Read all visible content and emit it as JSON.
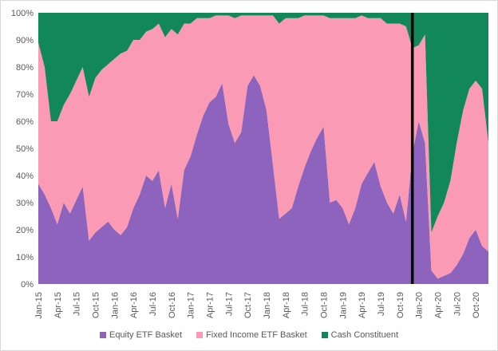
{
  "chart_data": {
    "type": "area",
    "stacked": true,
    "percent": true,
    "title": "",
    "xlabel": "",
    "ylabel": "",
    "ylim": [
      0,
      100
    ],
    "y_ticks": [
      "0%",
      "10%",
      "20%",
      "30%",
      "40%",
      "50%",
      "60%",
      "70%",
      "80%",
      "90%",
      "100%"
    ],
    "x_tick_labels": [
      "Jan-15",
      "Apr-15",
      "Jul-15",
      "Oct-15",
      "Jan-16",
      "Apr-16",
      "Jul-16",
      "Oct-16",
      "Jan-17",
      "Apr-17",
      "Jul-17",
      "Oct-17",
      "Jan-18",
      "Apr-18",
      "Jul-18",
      "Oct-18",
      "Jan-19",
      "Apr-19",
      "Jul-19",
      "Oct-19",
      "Jan-20",
      "Apr-20",
      "Jul-20",
      "Oct-20"
    ],
    "x_range": [
      "2015-01",
      "2020-12"
    ],
    "vertical_marker": "2019-12",
    "grid": false,
    "legend_position": "bottom",
    "series": [
      {
        "name": "Equity ETF Basket",
        "color": "#8E63BD",
        "x": [
          "2015-01",
          "2015-02",
          "2015-03",
          "2015-04",
          "2015-05",
          "2015-06",
          "2015-07",
          "2015-08",
          "2015-09",
          "2015-10",
          "2015-11",
          "2015-12",
          "2016-01",
          "2016-02",
          "2016-03",
          "2016-04",
          "2016-05",
          "2016-06",
          "2016-07",
          "2016-08",
          "2016-09",
          "2016-10",
          "2016-11",
          "2016-12",
          "2017-01",
          "2017-02",
          "2017-03",
          "2017-04",
          "2017-05",
          "2017-06",
          "2017-07",
          "2017-08",
          "2017-09",
          "2017-10",
          "2017-11",
          "2017-12",
          "2018-01",
          "2018-02",
          "2018-03",
          "2018-04",
          "2018-05",
          "2018-06",
          "2018-07",
          "2018-08",
          "2018-09",
          "2018-10",
          "2018-11",
          "2018-12",
          "2019-01",
          "2019-02",
          "2019-03",
          "2019-04",
          "2019-05",
          "2019-06",
          "2019-07",
          "2019-08",
          "2019-09",
          "2019-10",
          "2019-11",
          "2019-12",
          "2020-01",
          "2020-02",
          "2020-03",
          "2020-04",
          "2020-05",
          "2020-06",
          "2020-07",
          "2020-08",
          "2020-09",
          "2020-10",
          "2020-11",
          "2020-12"
        ],
        "values": [
          37,
          33,
          28,
          22,
          30,
          26,
          31,
          36,
          16,
          19,
          21,
          23,
          20,
          18,
          21,
          28,
          33,
          40,
          38,
          42,
          28,
          37,
          24,
          42,
          47,
          55,
          62,
          67,
          69,
          74,
          59,
          52,
          56,
          73,
          77,
          73,
          64,
          44,
          24,
          26,
          28,
          36,
          43,
          49,
          54,
          58,
          30,
          31,
          28,
          22,
          28,
          37,
          41,
          45,
          36,
          30,
          26,
          33,
          23,
          48,
          60,
          52,
          5,
          2,
          3,
          4,
          7,
          11,
          17,
          20,
          14,
          12
        ]
      },
      {
        "name": "Fixed Income ETF Basket",
        "color": "#FB9AB4",
        "x": [
          "2015-01",
          "2015-02",
          "2015-03",
          "2015-04",
          "2015-05",
          "2015-06",
          "2015-07",
          "2015-08",
          "2015-09",
          "2015-10",
          "2015-11",
          "2015-12",
          "2016-01",
          "2016-02",
          "2016-03",
          "2016-04",
          "2016-05",
          "2016-06",
          "2016-07",
          "2016-08",
          "2016-09",
          "2016-10",
          "2016-11",
          "2016-12",
          "2017-01",
          "2017-02",
          "2017-03",
          "2017-04",
          "2017-05",
          "2017-06",
          "2017-07",
          "2017-08",
          "2017-09",
          "2017-10",
          "2017-11",
          "2017-12",
          "2018-01",
          "2018-02",
          "2018-03",
          "2018-04",
          "2018-05",
          "2018-06",
          "2018-07",
          "2018-08",
          "2018-09",
          "2018-10",
          "2018-11",
          "2018-12",
          "2019-01",
          "2019-02",
          "2019-03",
          "2019-04",
          "2019-05",
          "2019-06",
          "2019-07",
          "2019-08",
          "2019-09",
          "2019-10",
          "2019-11",
          "2019-12",
          "2020-01",
          "2020-02",
          "2020-03",
          "2020-04",
          "2020-05",
          "2020-06",
          "2020-07",
          "2020-08",
          "2020-09",
          "2020-10",
          "2020-11",
          "2020-12"
        ],
        "values": [
          52,
          47,
          32,
          38,
          36,
          44,
          44,
          44,
          53,
          57,
          58,
          58,
          63,
          67,
          65,
          62,
          57,
          53,
          56,
          54,
          63,
          57,
          68,
          54,
          49,
          43,
          36,
          31,
          30,
          25,
          40,
          46,
          43,
          26,
          22,
          26,
          35,
          55,
          72,
          72,
          70,
          62,
          56,
          50,
          45,
          41,
          68,
          67,
          70,
          76,
          70,
          62,
          57,
          53,
          62,
          66,
          70,
          63,
          72,
          39,
          28,
          40,
          14,
          23,
          27,
          34,
          45,
          53,
          55,
          55,
          58,
          40
        ]
      },
      {
        "name": "Cash Constituent",
        "color": "#12875A",
        "x": [
          "2015-01",
          "2015-02",
          "2015-03",
          "2015-04",
          "2015-05",
          "2015-06",
          "2015-07",
          "2015-08",
          "2015-09",
          "2015-10",
          "2015-11",
          "2015-12",
          "2016-01",
          "2016-02",
          "2016-03",
          "2016-04",
          "2016-05",
          "2016-06",
          "2016-07",
          "2016-08",
          "2016-09",
          "2016-10",
          "2016-11",
          "2016-12",
          "2017-01",
          "2017-02",
          "2017-03",
          "2017-04",
          "2017-05",
          "2017-06",
          "2017-07",
          "2017-08",
          "2017-09",
          "2017-10",
          "2017-11",
          "2017-12",
          "2018-01",
          "2018-02",
          "2018-03",
          "2018-04",
          "2018-05",
          "2018-06",
          "2018-07",
          "2018-08",
          "2018-09",
          "2018-10",
          "2018-11",
          "2018-12",
          "2019-01",
          "2019-02",
          "2019-03",
          "2019-04",
          "2019-05",
          "2019-06",
          "2019-07",
          "2019-08",
          "2019-09",
          "2019-10",
          "2019-11",
          "2019-12",
          "2020-01",
          "2020-02",
          "2020-03",
          "2020-04",
          "2020-05",
          "2020-06",
          "2020-07",
          "2020-08",
          "2020-09",
          "2020-10",
          "2020-11",
          "2020-12"
        ],
        "values": [
          11,
          20,
          40,
          40,
          34,
          30,
          25,
          20,
          31,
          24,
          21,
          19,
          17,
          15,
          14,
          10,
          10,
          7,
          6,
          4,
          9,
          6,
          8,
          4,
          4,
          2,
          2,
          2,
          1,
          1,
          1,
          2,
          1,
          1,
          1,
          1,
          1,
          1,
          4,
          2,
          2,
          2,
          1,
          1,
          1,
          1,
          2,
          2,
          2,
          2,
          2,
          1,
          2,
          2,
          2,
          4,
          4,
          4,
          5,
          13,
          12,
          8,
          81,
          75,
          70,
          62,
          48,
          36,
          28,
          25,
          28,
          48
        ]
      }
    ]
  }
}
